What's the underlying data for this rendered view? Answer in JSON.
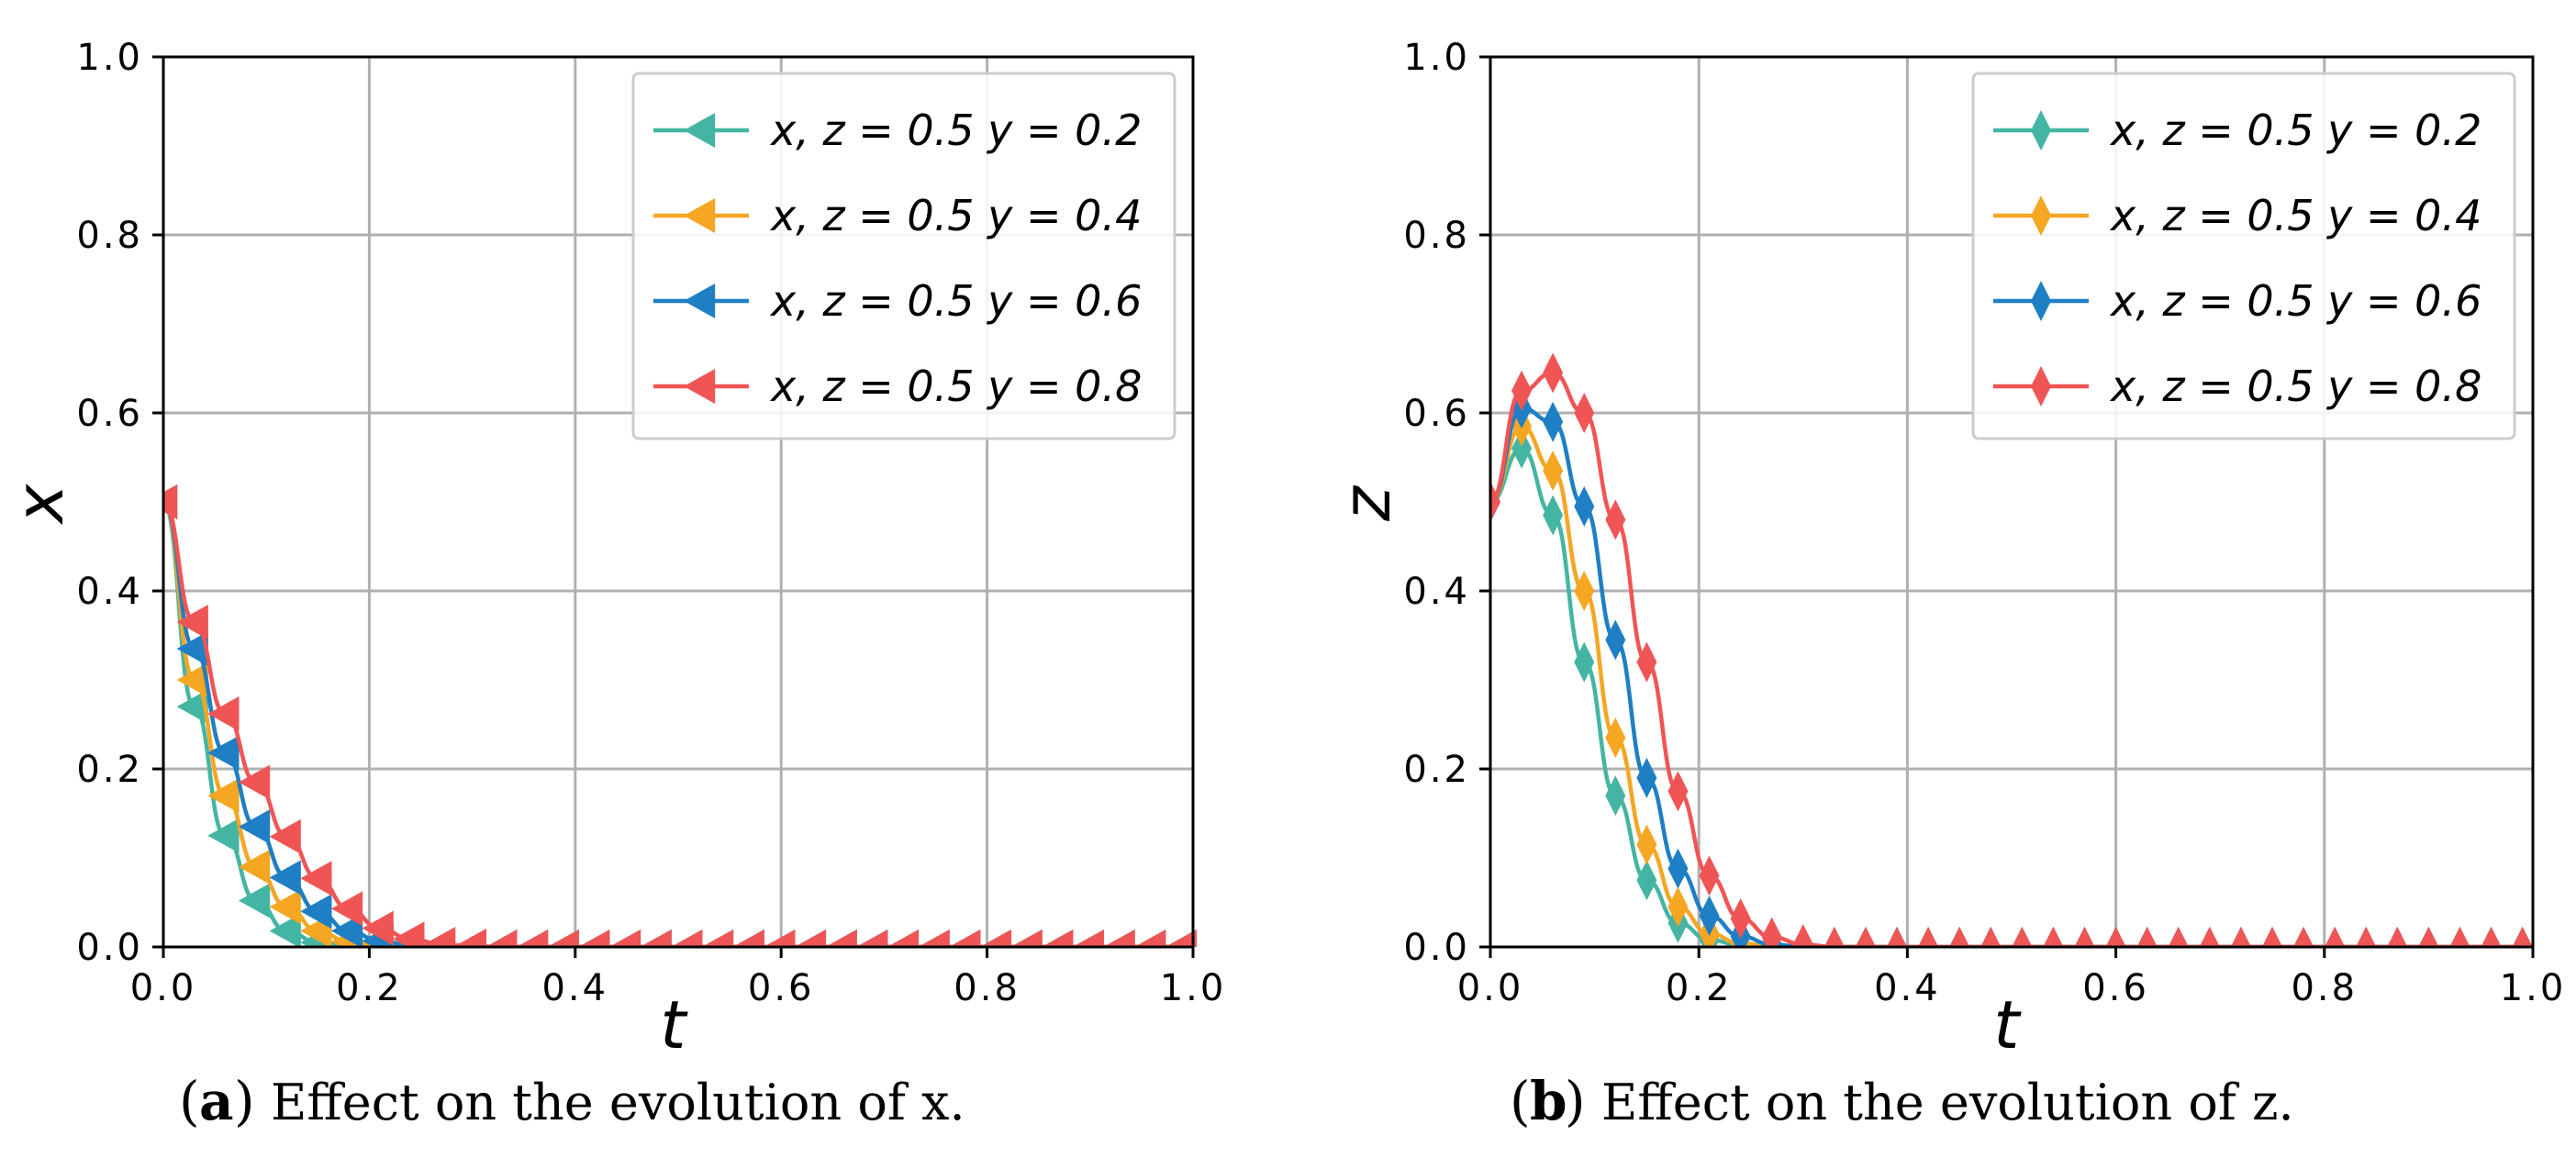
{
  "chart_data": [
    {
      "type": "line",
      "panel_label": "a",
      "caption": "Effect on the evolution of x.",
      "xlabel": "t",
      "ylabel": "x",
      "xlim": [
        0,
        1
      ],
      "ylim": [
        0,
        1
      ],
      "xticks": [
        "0.0",
        "0.2",
        "0.4",
        "0.6",
        "0.8",
        "1.0"
      ],
      "yticks": [
        "0.0",
        "0.2",
        "0.4",
        "0.6",
        "0.8",
        "1.0"
      ],
      "grid": true,
      "legend_position": "top-right",
      "marker": "triangle-left",
      "x": [
        0.0,
        0.03,
        0.06,
        0.09,
        0.12,
        0.15,
        0.18,
        0.21,
        0.24,
        0.27,
        0.3,
        0.33,
        0.36,
        0.39,
        0.42,
        0.45,
        0.48,
        0.51,
        0.54,
        0.57,
        0.6,
        0.63,
        0.66,
        0.69,
        0.72,
        0.75,
        0.78,
        0.81,
        0.84,
        0.87,
        0.9,
        0.93,
        0.96,
        0.99
      ],
      "series": [
        {
          "name": "x, z = 0.5  y = 0.2",
          "color": "#45b5a3",
          "values": [
            0.5,
            0.27,
            0.125,
            0.052,
            0.018,
            0.005,
            0.001,
            0,
            0,
            0,
            0,
            0,
            0,
            0,
            0,
            0,
            0,
            0,
            0,
            0,
            0,
            0,
            0,
            0,
            0,
            0,
            0,
            0,
            0,
            0,
            0,
            0,
            0,
            0
          ]
        },
        {
          "name": "x, z = 0.5  y = 0.4",
          "color": "#f5a623",
          "values": [
            0.5,
            0.3,
            0.17,
            0.09,
            0.045,
            0.018,
            0.006,
            0.002,
            0,
            0,
            0,
            0,
            0,
            0,
            0,
            0,
            0,
            0,
            0,
            0,
            0,
            0,
            0,
            0,
            0,
            0,
            0,
            0,
            0,
            0,
            0,
            0,
            0,
            0
          ]
        },
        {
          "name": "x, z = 0.5  y = 0.6",
          "color": "#1f7fc4",
          "values": [
            0.5,
            0.335,
            0.218,
            0.135,
            0.078,
            0.04,
            0.018,
            0.007,
            0.002,
            0,
            0,
            0,
            0,
            0,
            0,
            0,
            0,
            0,
            0,
            0,
            0,
            0,
            0,
            0,
            0,
            0,
            0,
            0,
            0,
            0,
            0,
            0,
            0,
            0
          ]
        },
        {
          "name": "x, z = 0.5  y = 0.8",
          "color": "#f05555",
          "values": [
            0.5,
            0.365,
            0.262,
            0.185,
            0.124,
            0.077,
            0.043,
            0.021,
            0.009,
            0.003,
            0.001,
            0,
            0,
            0,
            0,
            0,
            0,
            0,
            0,
            0,
            0,
            0,
            0,
            0,
            0,
            0,
            0,
            0,
            0,
            0,
            0,
            0,
            0,
            0
          ]
        }
      ]
    },
    {
      "type": "line",
      "panel_label": "b",
      "caption": "Effect on the evolution of z.",
      "xlabel": "t",
      "ylabel": "z",
      "xlim": [
        0,
        1
      ],
      "ylim": [
        0,
        1
      ],
      "xticks": [
        "0.0",
        "0.2",
        "0.4",
        "0.6",
        "0.8",
        "1.0"
      ],
      "yticks": [
        "0.0",
        "0.2",
        "0.4",
        "0.6",
        "0.8",
        "1.0"
      ],
      "grid": true,
      "legend_position": "top-right",
      "marker": "thin-diamond",
      "x": [
        0.0,
        0.03,
        0.06,
        0.09,
        0.12,
        0.15,
        0.18,
        0.21,
        0.24,
        0.27,
        0.3,
        0.33,
        0.36,
        0.39,
        0.42,
        0.45,
        0.48,
        0.51,
        0.54,
        0.57,
        0.6,
        0.63,
        0.66,
        0.69,
        0.72,
        0.75,
        0.78,
        0.81,
        0.84,
        0.87,
        0.9,
        0.93,
        0.96,
        0.99
      ],
      "series": [
        {
          "name": "x, z = 0.5  y = 0.2",
          "color": "#45b5a3",
          "values": [
            0.5,
            0.56,
            0.485,
            0.32,
            0.17,
            0.075,
            0.027,
            0.008,
            0.002,
            0,
            0,
            0,
            0,
            0,
            0,
            0,
            0,
            0,
            0,
            0,
            0,
            0,
            0,
            0,
            0,
            0,
            0,
            0,
            0,
            0,
            0,
            0,
            0,
            0
          ]
        },
        {
          "name": "x, z = 0.5  y = 0.4",
          "color": "#f5a623",
          "values": [
            0.5,
            0.585,
            0.535,
            0.4,
            0.235,
            0.115,
            0.045,
            0.015,
            0.004,
            0.001,
            0,
            0,
            0,
            0,
            0,
            0,
            0,
            0,
            0,
            0,
            0,
            0,
            0,
            0,
            0,
            0,
            0,
            0,
            0,
            0,
            0,
            0,
            0,
            0
          ]
        },
        {
          "name": "x, z = 0.5  y = 0.6",
          "color": "#1f7fc4",
          "values": [
            0.5,
            0.605,
            0.59,
            0.495,
            0.345,
            0.19,
            0.088,
            0.035,
            0.012,
            0.003,
            0,
            0,
            0,
            0,
            0,
            0,
            0,
            0,
            0,
            0,
            0,
            0,
            0,
            0,
            0,
            0,
            0,
            0,
            0,
            0,
            0,
            0,
            0,
            0
          ]
        },
        {
          "name": "x, z = 0.5  y = 0.8",
          "color": "#f05555",
          "values": [
            0.5,
            0.625,
            0.645,
            0.6,
            0.48,
            0.32,
            0.175,
            0.08,
            0.032,
            0.011,
            0.003,
            0,
            0,
            0,
            0,
            0,
            0,
            0,
            0,
            0,
            0,
            0,
            0,
            0,
            0,
            0,
            0,
            0,
            0,
            0,
            0,
            0,
            0,
            0
          ]
        }
      ]
    }
  ]
}
